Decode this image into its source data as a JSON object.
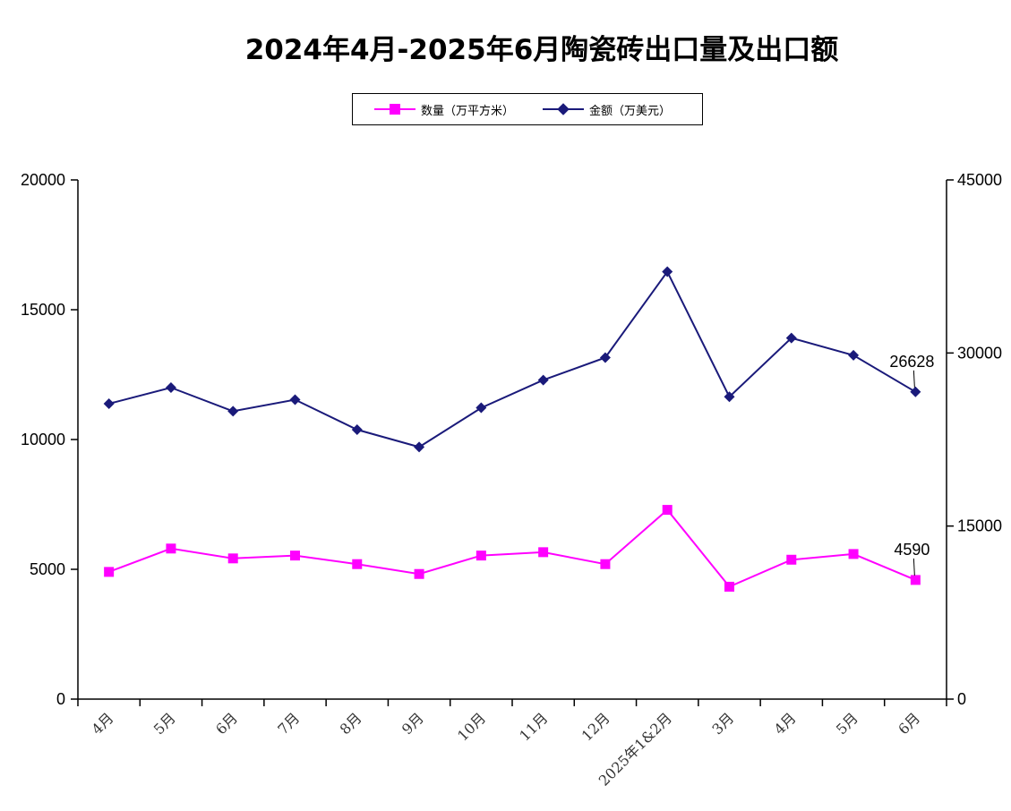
{
  "chart_data": {
    "type": "line",
    "title": "2024年4月-2025年6月陶瓷砖出口量及出口额",
    "categories": [
      "4月",
      "5月",
      "6月",
      "7月",
      "8月",
      "9月",
      "10月",
      "11月",
      "12月",
      "2025年1&2月",
      "3月",
      "4月",
      "5月",
      "6月"
    ],
    "series": [
      {
        "name": "数量（万平方米）",
        "axis": "left",
        "color": "#ff00ff",
        "marker": "square",
        "values": [
          4900,
          5800,
          5420,
          5530,
          5200,
          4820,
          5530,
          5660,
          5200,
          7290,
          4330,
          5370,
          5590,
          4590
        ]
      },
      {
        "name": "金额（万美元）",
        "axis": "right",
        "color": "#1a1a7a",
        "marker": "diamond",
        "values": [
          25600,
          27000,
          24950,
          25950,
          23350,
          21850,
          25250,
          27650,
          29600,
          37050,
          26200,
          31300,
          29800,
          26628
        ]
      }
    ],
    "y_left": {
      "min": 0,
      "max": 20000,
      "ticks": [
        "0",
        "5000",
        "10000",
        "15000",
        "20000"
      ]
    },
    "y_right": {
      "min": 0,
      "max": 45000,
      "ticks": [
        "0",
        "15000",
        "30000",
        "45000"
      ]
    },
    "annotations": [
      {
        "series": 1,
        "index": 13,
        "text": "26628"
      },
      {
        "series": 0,
        "index": 13,
        "text": "4590"
      }
    ],
    "legend_placement": "top-center",
    "grid": false
  }
}
